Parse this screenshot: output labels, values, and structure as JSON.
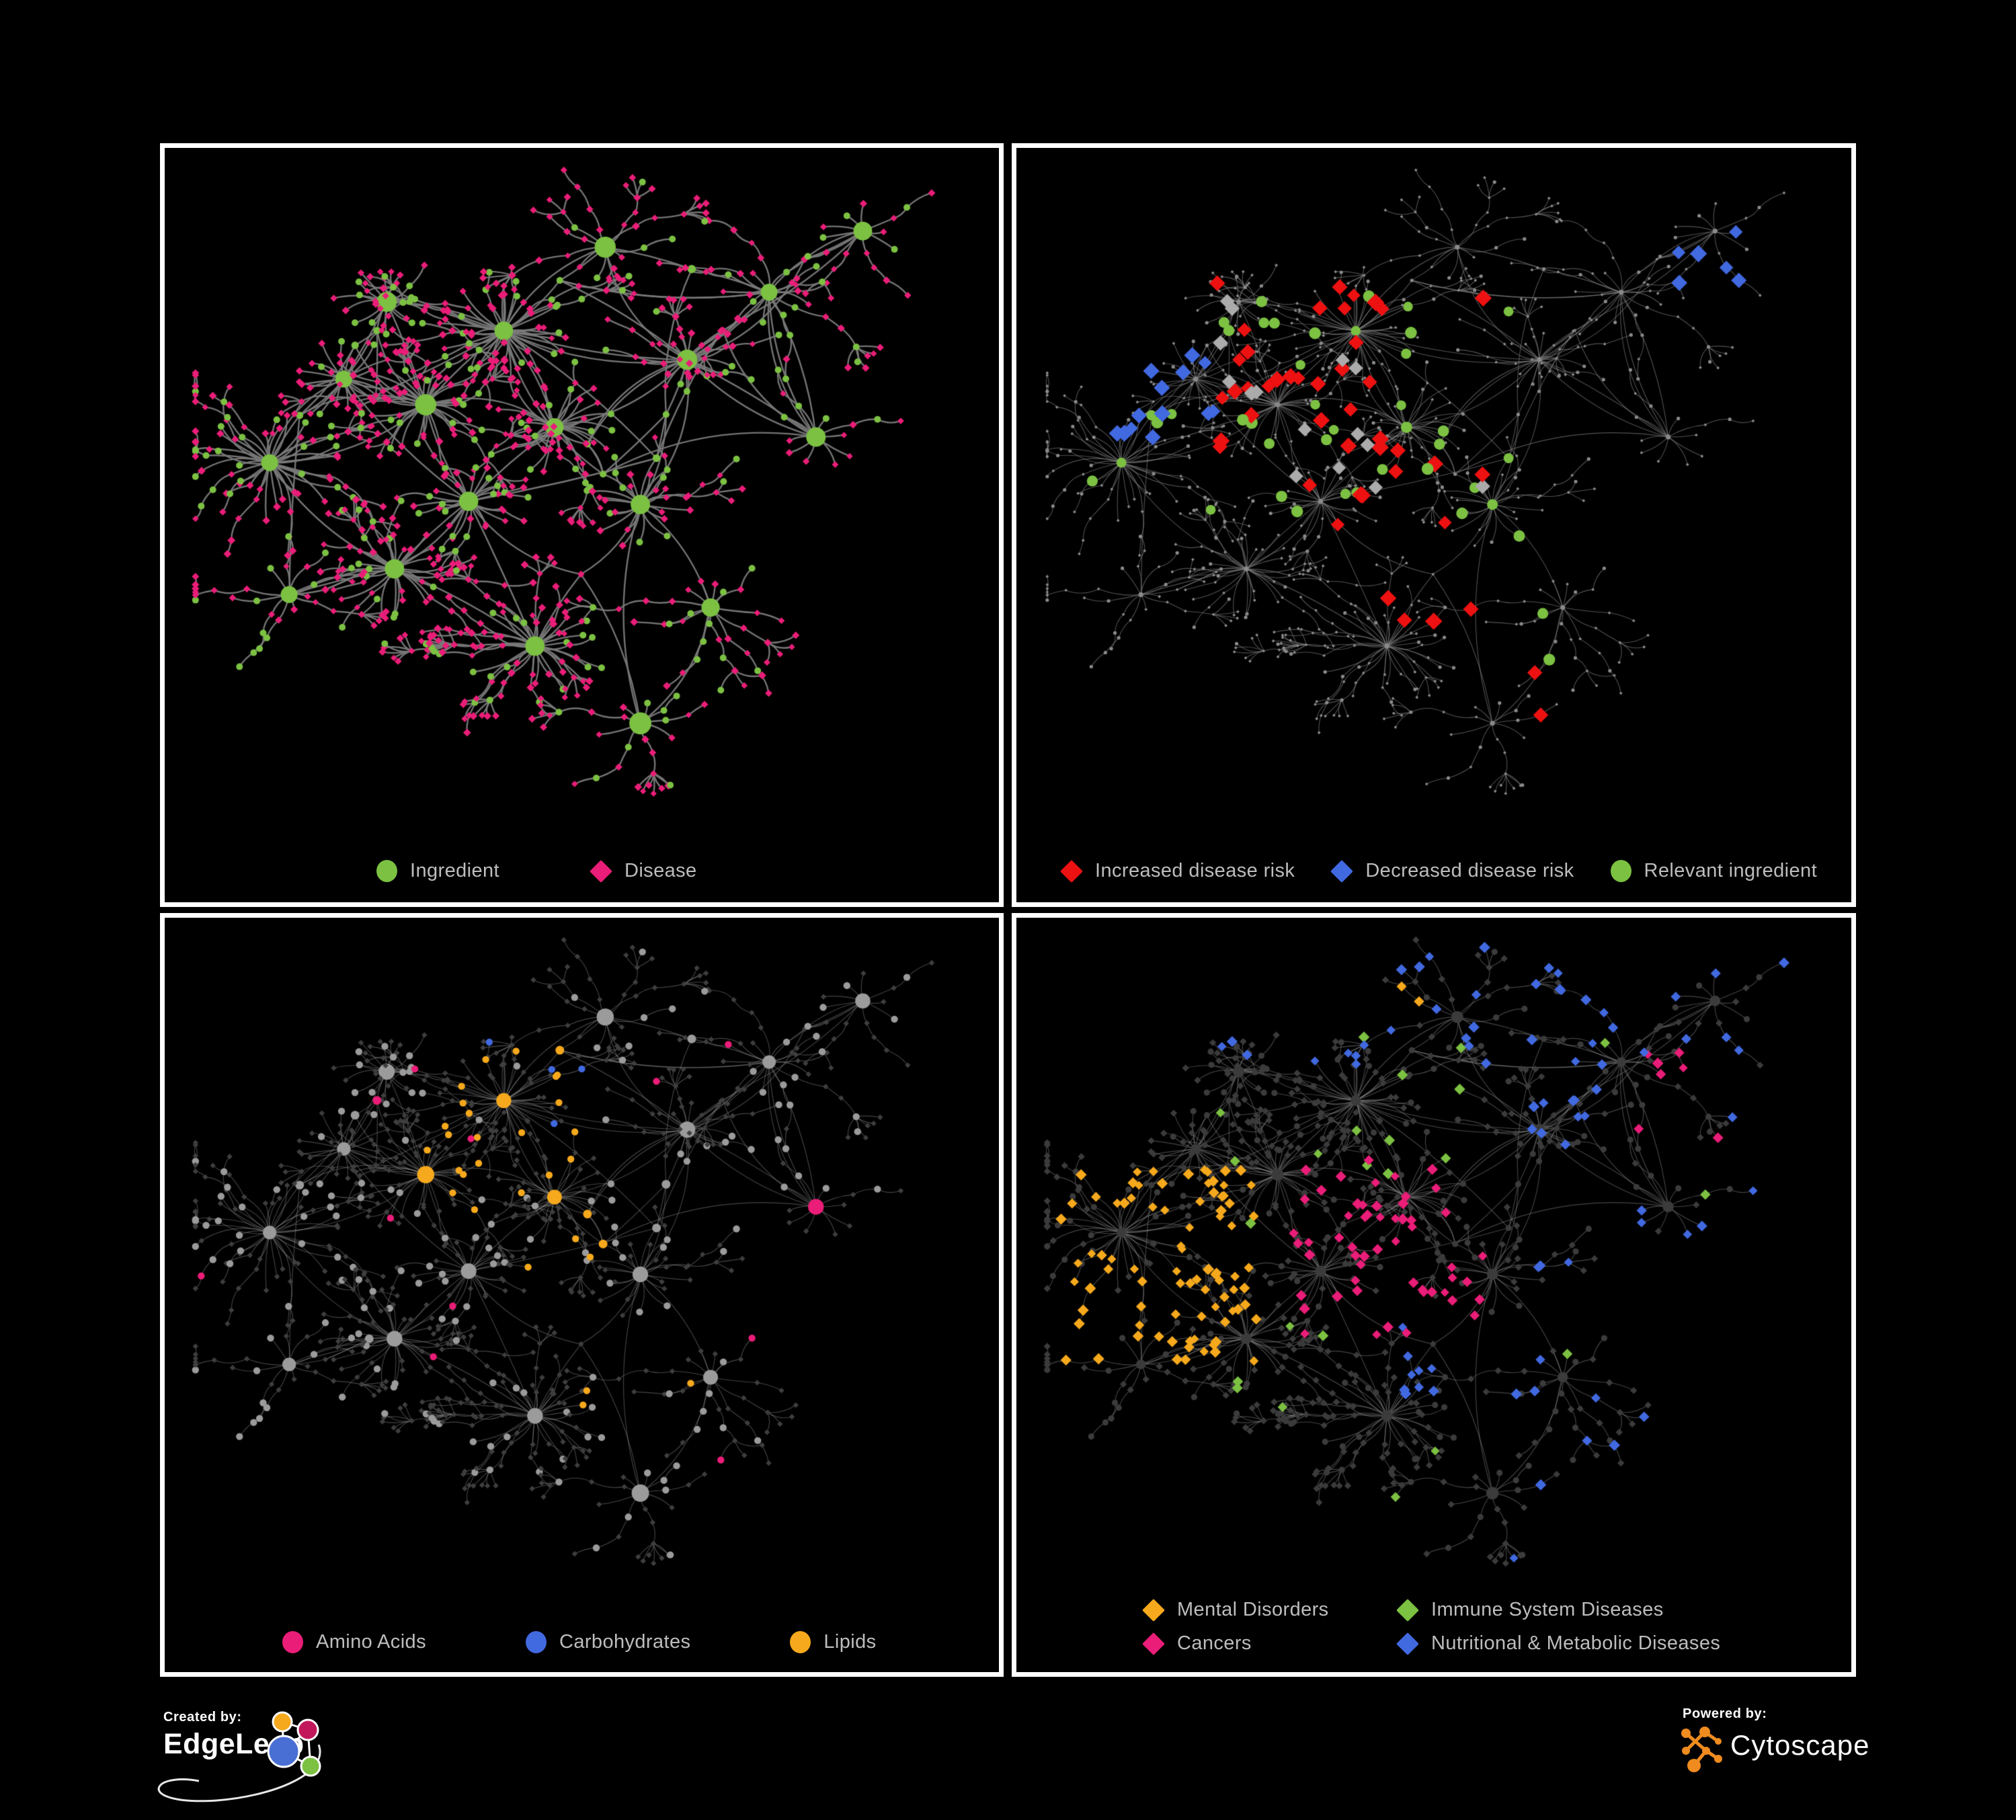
{
  "figure": {
    "background": "#000000",
    "panel_border_color": "#ffffff"
  },
  "colors": {
    "green": "#7CC142",
    "pink": "#EA1D78",
    "red": "#EE1111",
    "blue": "#4169E0",
    "orange": "#F6A91C",
    "gray_node": "#8A8A8A",
    "gray_diamond": "#ABABAB",
    "dim_node": "#3B3B3B",
    "light_gray_ing": "#9B9B9B",
    "legend_text": "#BDBDBD"
  },
  "panels": [
    {
      "id": "ingredient-disease",
      "legend": {
        "items": [
          {
            "label": "Ingredient",
            "shape": "circle",
            "color": "#7CC142"
          },
          {
            "label": "Disease",
            "shape": "diamond",
            "color": "#EA1D78"
          }
        ]
      },
      "style": {
        "edge_color": "rgba(122,122,122,0.95)",
        "edge_width": 2.4
      }
    },
    {
      "id": "disease-risk",
      "legend": {
        "items": [
          {
            "label": "Increased disease risk",
            "shape": "diamond",
            "color": "#EE1111"
          },
          {
            "label": "Decreased disease risk",
            "shape": "diamond",
            "color": "#4169E0"
          },
          {
            "label": "Relevant ingredient",
            "shape": "circle",
            "color": "#7CC142"
          }
        ]
      },
      "style": {
        "edge_color": "rgba(135,135,135,0.6)",
        "edge_width": 1.1
      }
    },
    {
      "id": "nutrient-classes",
      "legend": {
        "items": [
          {
            "label": "Amino Acids",
            "shape": "circle",
            "color": "#EA1D78"
          },
          {
            "label": "Carbohydrates",
            "shape": "circle",
            "color": "#4169E0"
          },
          {
            "label": "Lipids",
            "shape": "circle",
            "color": "#F6A91C"
          }
        ]
      },
      "style": {
        "edge_color": "rgba(160,160,160,0.42)",
        "edge_width": 1.15
      }
    },
    {
      "id": "disease-classes",
      "legend": {
        "items": [
          {
            "label": "Mental Disorders",
            "shape": "diamond",
            "color": "#F6A91C"
          },
          {
            "label": "Immune System Diseases",
            "shape": "diamond",
            "color": "#7CC142"
          },
          {
            "label": "Cancers",
            "shape": "diamond",
            "color": "#EA1D78"
          },
          {
            "label": "Nutritional & Metabolic Diseases",
            "shape": "diamond",
            "color": "#4169E0"
          }
        ]
      },
      "style": {
        "edge_color": "rgba(150,150,150,0.45)",
        "edge_width": 1.15
      }
    }
  ],
  "footer": {
    "created_by": {
      "label": "Created by:",
      "name": "EdgeLeap"
    },
    "powered_by": {
      "label": "Powered by:",
      "name": "Cytoscape"
    }
  },
  "network": {
    "seed": 1337,
    "cross_edges": 50,
    "hubs": [
      [
        0.1,
        0.46,
        40,
        0.085
      ],
      [
        0.195,
        0.33,
        24,
        0.065
      ],
      [
        0.3,
        0.37,
        36,
        0.075
      ],
      [
        0.25,
        0.21,
        18,
        0.06
      ],
      [
        0.4,
        0.255,
        42,
        0.08
      ],
      [
        0.465,
        0.405,
        32,
        0.075
      ],
      [
        0.355,
        0.52,
        26,
        0.065
      ],
      [
        0.26,
        0.625,
        32,
        0.075
      ],
      [
        0.44,
        0.745,
        38,
        0.08
      ],
      [
        0.575,
        0.525,
        22,
        0.065
      ],
      [
        0.635,
        0.3,
        20,
        0.06
      ],
      [
        0.74,
        0.195,
        16,
        0.055
      ],
      [
        0.86,
        0.1,
        9,
        0.05
      ],
      [
        0.665,
        0.685,
        13,
        0.055
      ],
      [
        0.125,
        0.665,
        11,
        0.05
      ],
      [
        0.53,
        0.125,
        11,
        0.05
      ],
      [
        0.8,
        0.42,
        10,
        0.05
      ],
      [
        0.575,
        0.865,
        9,
        0.05
      ]
    ],
    "hub_links": [
      [
        0,
        1
      ],
      [
        1,
        2
      ],
      [
        2,
        3
      ],
      [
        2,
        4
      ],
      [
        2,
        5
      ],
      [
        4,
        5
      ],
      [
        5,
        6
      ],
      [
        6,
        7
      ],
      [
        6,
        8
      ],
      [
        5,
        9
      ],
      [
        9,
        10
      ],
      [
        10,
        11
      ],
      [
        11,
        12
      ],
      [
        9,
        13
      ],
      [
        7,
        14
      ],
      [
        4,
        15
      ],
      [
        15,
        11
      ],
      [
        8,
        9
      ],
      [
        7,
        8
      ],
      [
        1,
        3
      ],
      [
        9,
        17
      ],
      [
        10,
        16
      ],
      [
        5,
        10
      ],
      [
        16,
        11
      ],
      [
        4,
        10
      ],
      [
        0,
        2
      ]
    ],
    "zones": {
      "p2_red": [
        [
          0.22,
          0.18,
          0.58,
          0.5,
          0.15
        ],
        [
          0.36,
          0.5,
          0.56,
          0.72,
          0.12
        ],
        [
          0.52,
          0.68,
          0.68,
          0.88,
          0.2
        ]
      ],
      "p2_blue": [
        [
          0.08,
          0.28,
          0.22,
          0.46,
          0.3
        ],
        [
          0.8,
          0.08,
          0.93,
          0.2,
          0.6
        ]
      ],
      "p2_gray": [
        [
          0.2,
          0.2,
          0.6,
          0.55,
          0.05
        ]
      ],
      "p2_green": [
        [
          0.06,
          0.2,
          0.6,
          0.55,
          0.3
        ],
        [
          0.6,
          0.55,
          0.78,
          0.78,
          0.25
        ]
      ],
      "p3_orange": [
        [
          0.3,
          0.14,
          0.52,
          0.4,
          0.7
        ],
        [
          0.36,
          0.4,
          0.54,
          0.58,
          0.35
        ],
        [
          0.5,
          0.58,
          0.64,
          0.74,
          0.5
        ]
      ],
      "p3_blue": [
        [
          0.36,
          0.16,
          0.5,
          0.34,
          0.3
        ]
      ],
      "p3_pink_p": 0.07,
      "p4_orange": [
        [
          0.02,
          0.36,
          0.28,
          0.66,
          0.78
        ],
        [
          0.3,
          0.04,
          0.52,
          0.14,
          0.12
        ]
      ],
      "p4_pink": [
        [
          0.32,
          0.34,
          0.58,
          0.62,
          0.5
        ],
        [
          0.72,
          0.18,
          0.88,
          0.32,
          0.4
        ]
      ],
      "p4_blue": [
        [
          0.46,
          0.56,
          0.64,
          0.72,
          0.6
        ],
        [
          0.6,
          0.0,
          1.0,
          1.0,
          0.28
        ],
        [
          0.0,
          0.0,
          1.0,
          0.2,
          0.3
        ]
      ],
      "p4_green_p": 0.035
    }
  }
}
